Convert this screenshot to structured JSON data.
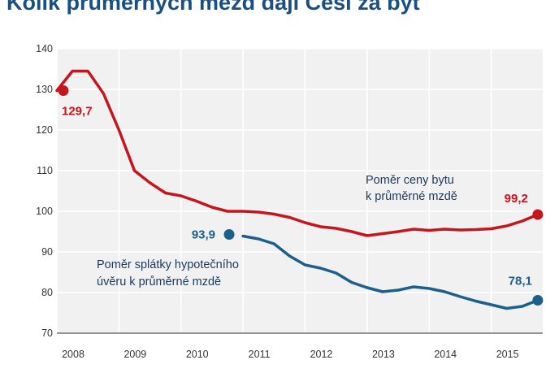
{
  "title": "Kolik průměrných mezd dají Češi za byt",
  "colors": {
    "red": "#c4161c",
    "blue": "#1b5f8c",
    "panel": "#f1f1f1",
    "grid": "#ffffff"
  },
  "chart_data": {
    "type": "line",
    "title": "Kolik průměrných mezd dají Češi za byt",
    "xlabel": "",
    "ylabel": "",
    "ylim": [
      70,
      140
    ],
    "xlim": [
      2008,
      2015.83
    ],
    "grid": true,
    "yticks": [
      "70",
      "80",
      "90",
      "100",
      "110",
      "120",
      "130",
      "140"
    ],
    "xticks": [
      "2008",
      "2009",
      "2010",
      "2011",
      "2012",
      "2013",
      "2014",
      "2015"
    ],
    "annotations": [
      {
        "series": 0,
        "line1": "Poměr ceny bytu",
        "line2": "k průměrné mzdě"
      },
      {
        "series": 1,
        "line1": "Poměr splátky hypotečního",
        "line2": "úvěru k průměrné mzdě"
      }
    ],
    "series": [
      {
        "name": "Poměr ceny bytu k průměrné mzdě",
        "color": "#c4161c",
        "start_label": "129,7",
        "end_label": "99,2",
        "x": [
          2008,
          2008.25,
          2008.5,
          2008.75,
          2009,
          2009.25,
          2009.5,
          2009.75,
          2010,
          2010.25,
          2010.5,
          2010.75,
          2011,
          2011.25,
          2011.5,
          2011.75,
          2012,
          2012.25,
          2012.5,
          2012.75,
          2013,
          2013.25,
          2013.5,
          2013.75,
          2014,
          2014.25,
          2014.5,
          2014.75,
          2015,
          2015.25,
          2015.5,
          2015.75
        ],
        "values": [
          129.7,
          134.5,
          134.5,
          129,
          120,
          110,
          107,
          104.5,
          103.8,
          102.5,
          101,
          100,
          100,
          99.8,
          99.3,
          98.5,
          97.2,
          96.2,
          95.8,
          95,
          94,
          94.5,
          95,
          95.6,
          95.3,
          95.6,
          95.4,
          95.5,
          95.7,
          96.4,
          97.6,
          99.2
        ]
      },
      {
        "name": "Poměr splátky hypotečního úvěru k průměrné mzdě",
        "color": "#1b5f8c",
        "start_label": "93,9",
        "end_label": "78,1",
        "x": [
          2010.75,
          2011,
          2011.25,
          2011.5,
          2011.75,
          2012,
          2012.25,
          2012.5,
          2012.75,
          2013,
          2013.25,
          2013.5,
          2013.75,
          2014,
          2014.25,
          2014.5,
          2014.75,
          2015,
          2015.25,
          2015.5,
          2015.75
        ],
        "values": [
          93.9,
          93.9,
          93.2,
          92,
          89,
          86.8,
          86,
          84.8,
          82.5,
          81.2,
          80.2,
          80.6,
          81.4,
          81,
          80.2,
          79,
          77.9,
          77,
          76.1,
          76.6,
          78.1
        ]
      }
    ]
  }
}
